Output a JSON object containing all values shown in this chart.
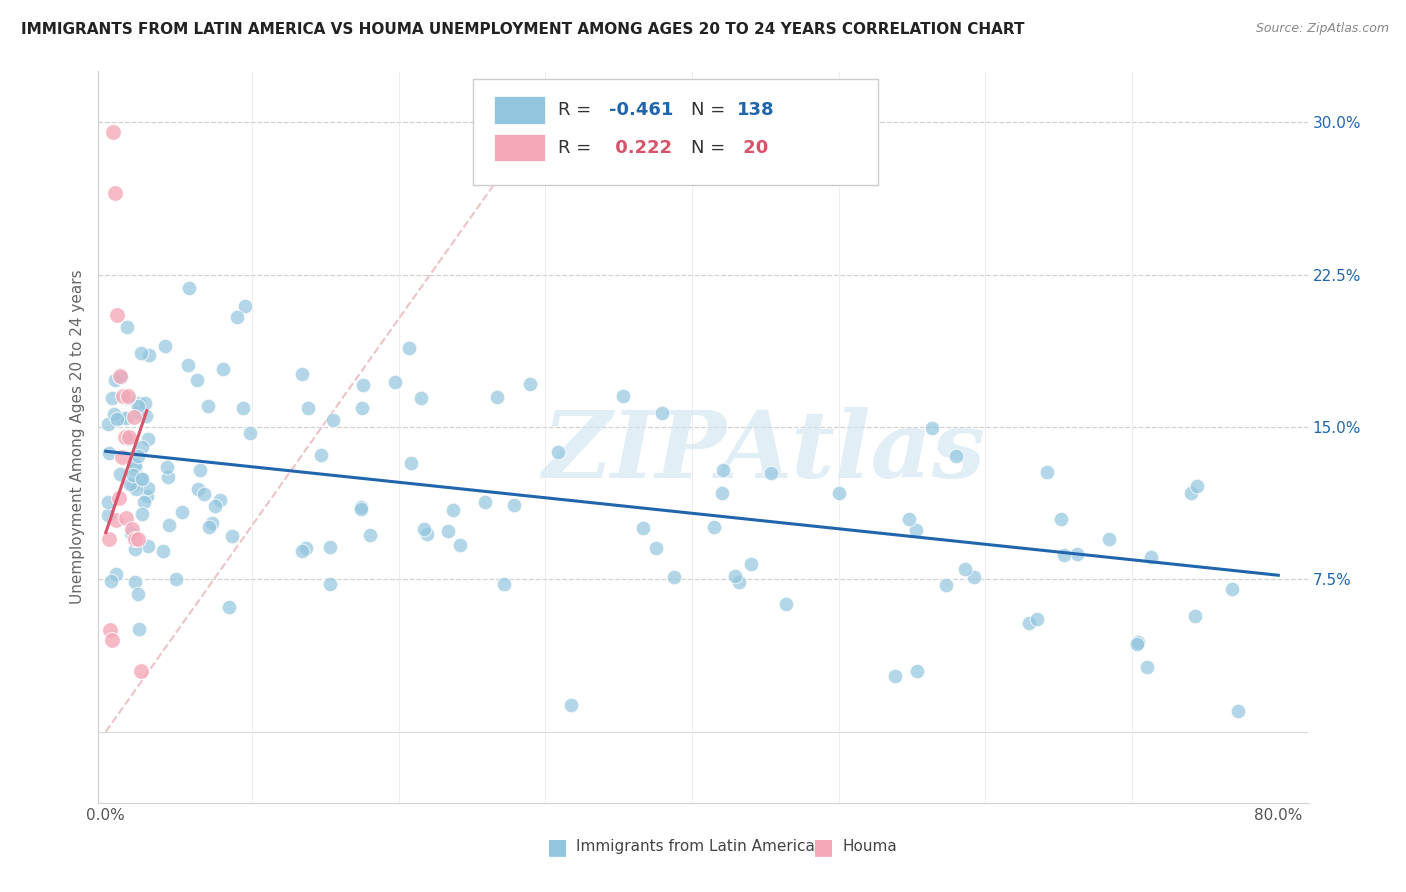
{
  "title": "IMMIGRANTS FROM LATIN AMERICA VS HOUMA UNEMPLOYMENT AMONG AGES 20 TO 24 YEARS CORRELATION CHART",
  "source": "Source: ZipAtlas.com",
  "ylabel": "Unemployment Among Ages 20 to 24 years",
  "ytick_labels": [
    "7.5%",
    "15.0%",
    "22.5%",
    "30.0%"
  ],
  "ytick_values": [
    0.075,
    0.15,
    0.225,
    0.3
  ],
  "xlim": [
    -0.005,
    0.82
  ],
  "ylim": [
    -0.035,
    0.325
  ],
  "blue_R": "-0.461",
  "blue_N": "138",
  "pink_R": "0.222",
  "pink_N": "20",
  "blue_color": "#92c5de",
  "pink_color": "#f4a8b8",
  "blue_line_color": "#2166ac",
  "pink_line_color": "#d6536a",
  "watermark": "ZIPAtlas",
  "legend_blue_label": "Immigrants from Latin America",
  "legend_pink_label": "Houma",
  "blue_trendline_x": [
    0.0,
    0.8
  ],
  "blue_trendline_y": [
    0.138,
    0.077
  ],
  "pink_trendline_x": [
    0.0,
    0.028
  ],
  "pink_trendline_y": [
    0.098,
    0.158
  ],
  "ref_line_x": [
    0.0,
    0.3
  ],
  "ref_line_y": [
    0.0,
    0.305
  ],
  "xtick_positions": [
    0.0,
    0.8
  ],
  "xtick_labels": [
    "0.0%",
    "80.0%"
  ]
}
